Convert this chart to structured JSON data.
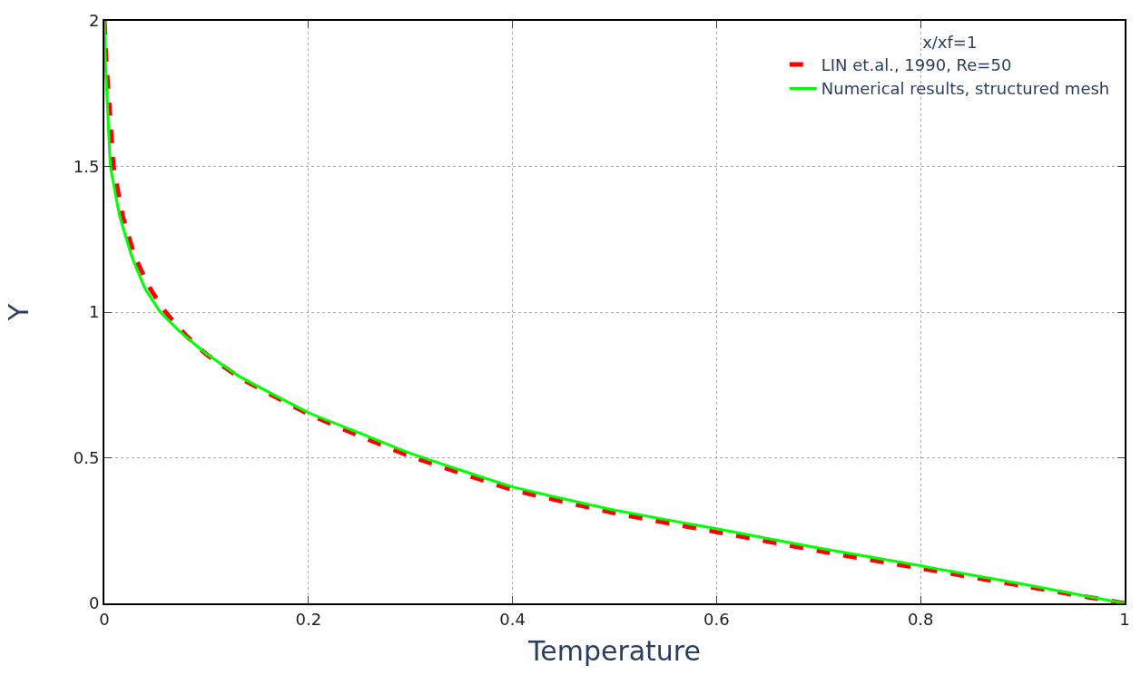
{
  "chart_data": {
    "type": "line",
    "xlabel": "Temperature",
    "ylabel": "Y",
    "legend_title": "x/xf=1",
    "xlim": [
      0,
      1
    ],
    "ylim": [
      0,
      2
    ],
    "xticks": [
      0,
      0.2,
      0.4,
      0.6,
      0.8,
      1
    ],
    "yticks": [
      0,
      0.5,
      1,
      1.5,
      2
    ],
    "grid": true,
    "legend": "top right",
    "series": [
      {
        "name": "LIN et.al., 1990, Re=50",
        "color": "#ff0000",
        "line_style": "dashed",
        "x": [
          0,
          0.002,
          0.005,
          0.009,
          0.018,
          0.03,
          0.045,
          0.06,
          0.08,
          0.1,
          0.135,
          0.2,
          0.25,
          0.3,
          0.4,
          0.5,
          0.6,
          0.7,
          0.8,
          0.9,
          1
        ],
        "values": [
          2,
          1.85,
          1.7,
          1.5,
          1.33,
          1.19,
          1.08,
          1.0,
          0.92,
          0.855,
          0.77,
          0.65,
          0.575,
          0.505,
          0.39,
          0.31,
          0.245,
          0.18,
          0.12,
          0.06,
          0
        ]
      },
      {
        "name": "Numerical results, structured mesh",
        "color": "#00ff00",
        "line_style": "solid",
        "x": [
          0,
          0.001,
          0.003,
          0.006,
          0.015,
          0.027,
          0.04,
          0.055,
          0.075,
          0.099,
          0.132,
          0.2,
          0.25,
          0.3,
          0.4,
          0.5,
          0.6,
          0.7,
          0.8,
          0.9,
          1
        ],
        "values": [
          2,
          1.86,
          1.71,
          1.5,
          1.33,
          1.19,
          1.08,
          1.0,
          0.93,
          0.86,
          0.78,
          0.655,
          0.585,
          0.515,
          0.4,
          0.32,
          0.256,
          0.19,
          0.129,
          0.066,
          0
        ]
      }
    ]
  }
}
